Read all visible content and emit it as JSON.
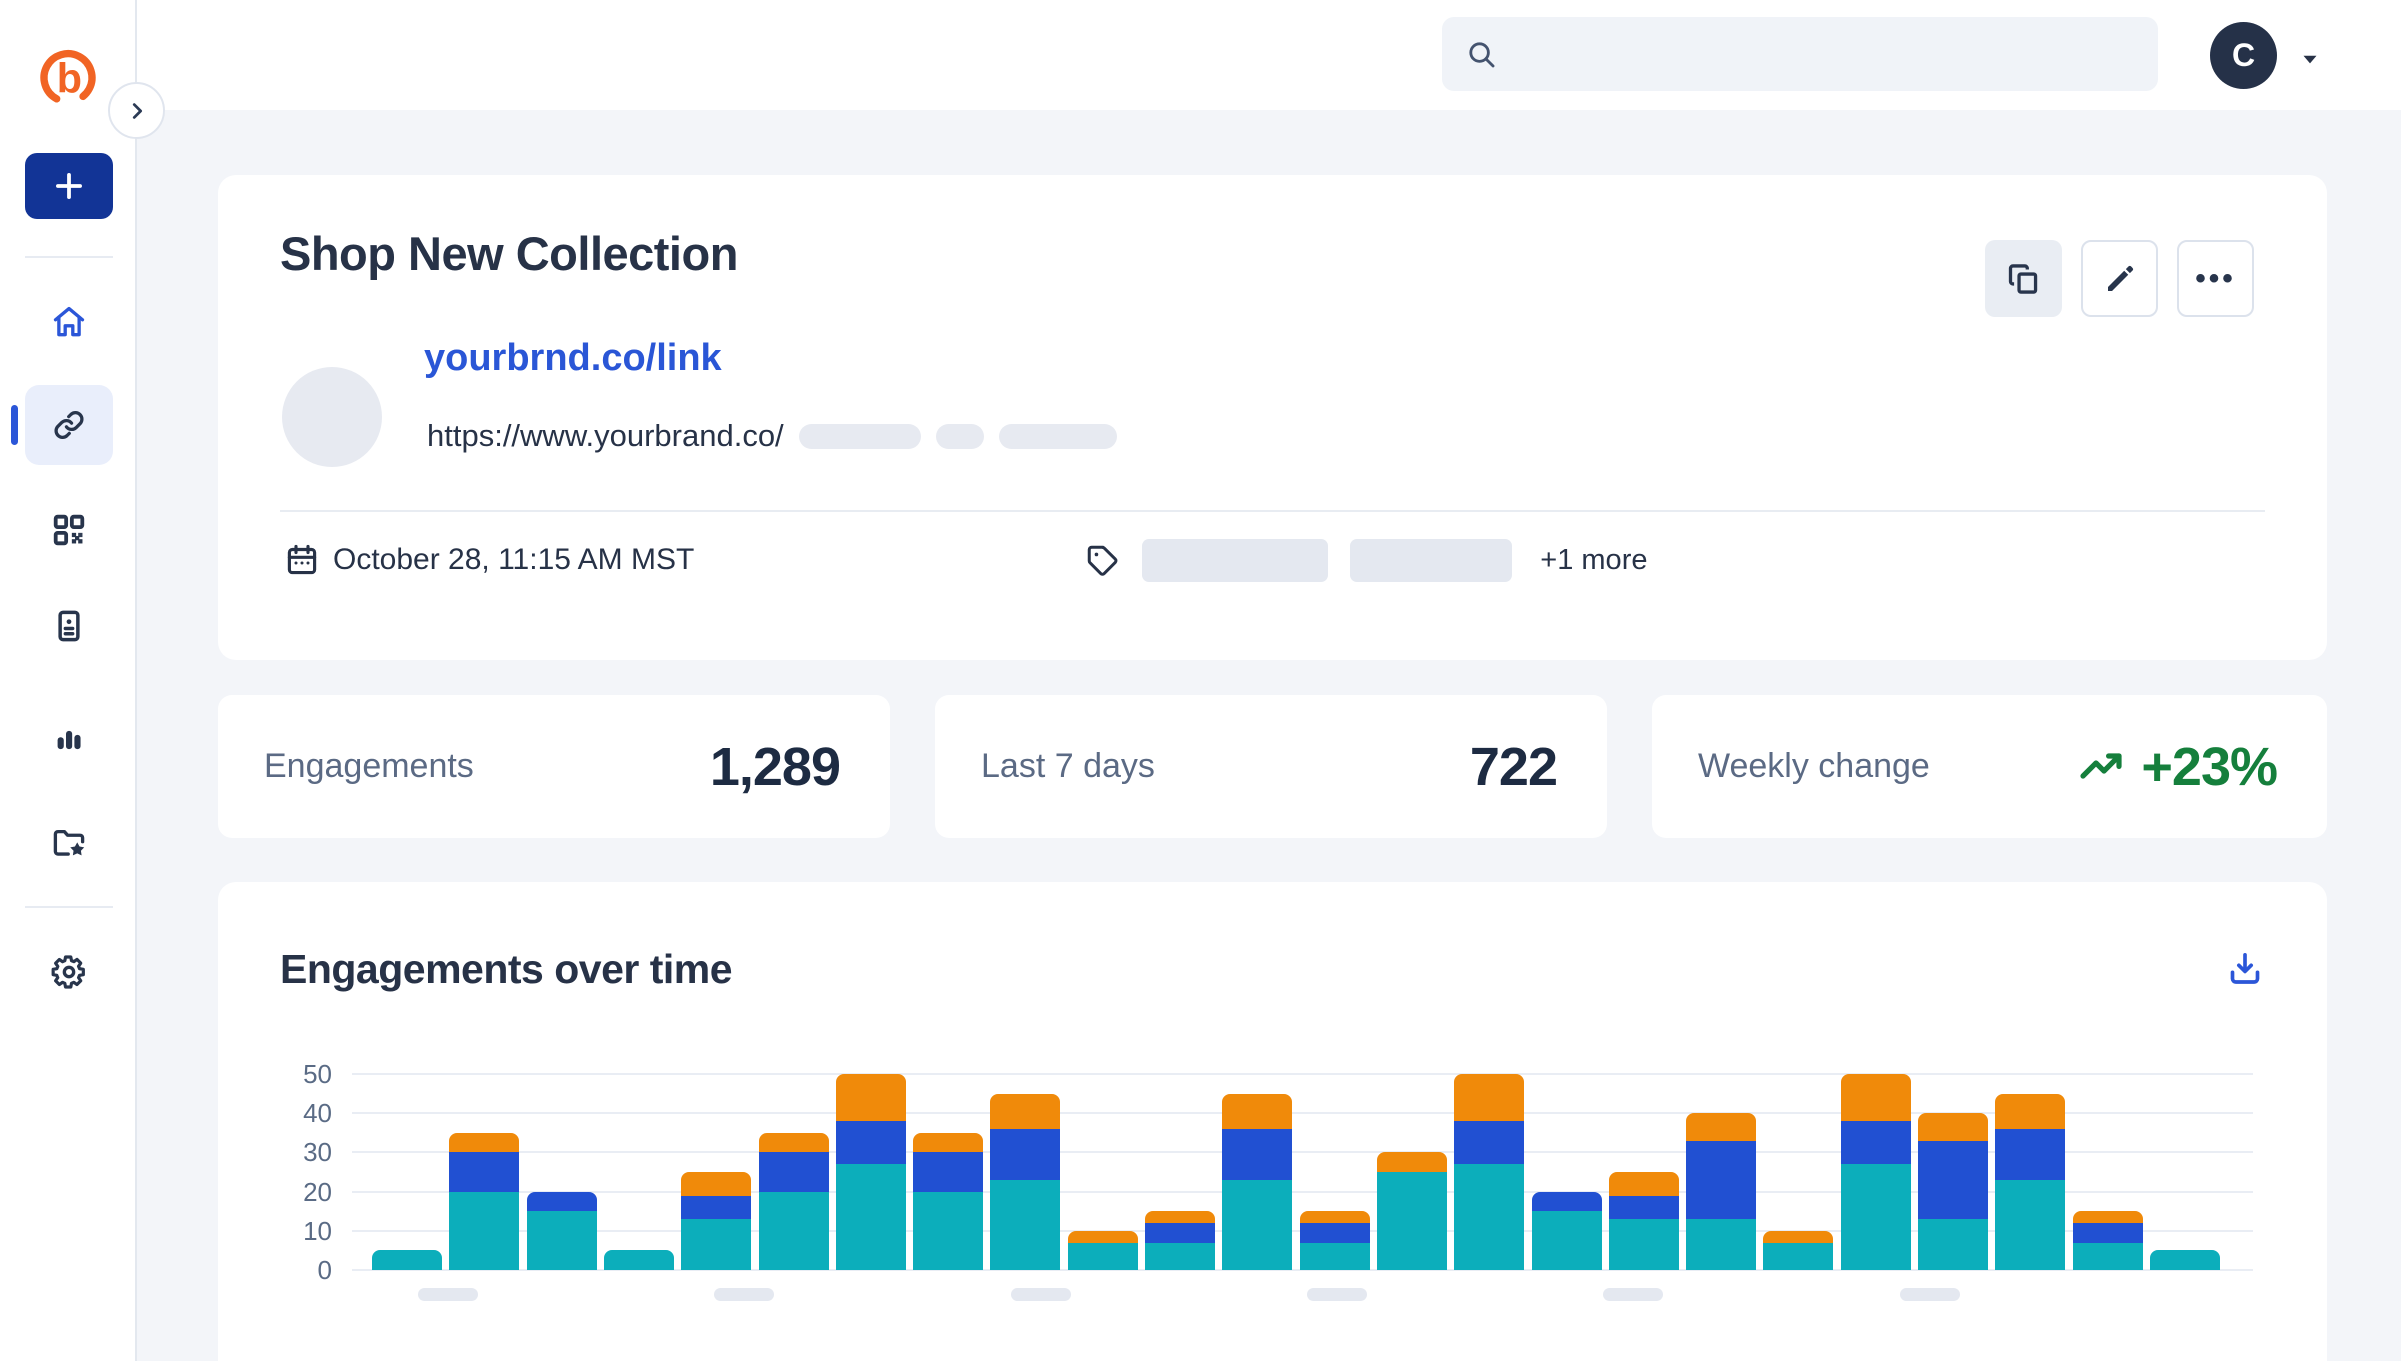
{
  "app": {
    "brand": "bitly"
  },
  "header": {
    "search": {
      "value": "",
      "placeholder": ""
    },
    "account": {
      "avatar_initial": "C"
    }
  },
  "sidebar": {
    "items": [
      {
        "id": "home",
        "icon": "home-icon",
        "active": false
      },
      {
        "id": "links",
        "icon": "link-icon",
        "active": true
      },
      {
        "id": "qr-codes",
        "icon": "qr-code-icon",
        "active": false
      },
      {
        "id": "pages",
        "icon": "pages-icon",
        "active": false
      },
      {
        "id": "analytics",
        "icon": "bar-chart-icon",
        "active": false
      },
      {
        "id": "campaigns",
        "icon": "folder-star-icon",
        "active": false
      }
    ],
    "settings_icon": "gear-icon",
    "create_icon": "plus-icon"
  },
  "link_detail": {
    "title": "Shop New Collection",
    "short_link": "yourbrnd.co/link",
    "destination_url": "https://www.yourbrand.co/",
    "created_at": "October 28, 11:15 AM MST",
    "tags_more_label": "+1 more",
    "action_icons": [
      "copy-icon",
      "pencil-icon",
      "ellipsis-icon"
    ]
  },
  "stats": [
    {
      "label": "Engagements",
      "value": "1,289"
    },
    {
      "label": "Last 7 days",
      "value": "722"
    },
    {
      "label": "Weekly change",
      "value": "+23%",
      "trend": "up",
      "color": "#157f3c"
    }
  ],
  "chart_data": {
    "type": "bar",
    "stacked": true,
    "title": "Engagements over time",
    "xlabel": "",
    "ylabel": "",
    "ylim": [
      0,
      50
    ],
    "yticks": [
      0,
      10,
      20,
      30,
      40,
      50
    ],
    "grid": true,
    "legend": false,
    "x_tick_labels": [
      "",
      "",
      "",
      "",
      "",
      ""
    ],
    "series": [
      {
        "name": "teal",
        "color": "#0caebb",
        "values": [
          5,
          20,
          15,
          5,
          13,
          20,
          27,
          20,
          23,
          7,
          7,
          23,
          7,
          25,
          27,
          15,
          13,
          13,
          7,
          27,
          13,
          23,
          7,
          5
        ]
      },
      {
        "name": "blue",
        "color": "#2150d2",
        "values": [
          0,
          10,
          5,
          0,
          6,
          10,
          11,
          10,
          13,
          0,
          5,
          13,
          5,
          0,
          11,
          5,
          6,
          20,
          0,
          11,
          20,
          13,
          5,
          0
        ]
      },
      {
        "name": "orange",
        "color": "#f08a0a",
        "values": [
          0,
          5,
          0,
          0,
          6,
          5,
          12,
          5,
          9,
          3,
          3,
          9,
          3,
          5,
          12,
          0,
          6,
          7,
          3,
          12,
          7,
          9,
          3,
          0
        ]
      }
    ],
    "totals": [
      5,
      35,
      20,
      5,
      25,
      35,
      50,
      35,
      45,
      10,
      15,
      45,
      15,
      30,
      50,
      20,
      25,
      40,
      10,
      50,
      40,
      45,
      15,
      5
    ]
  },
  "colors": {
    "brand_orange": "#f16424",
    "accent_blue": "#2a56d6",
    "navy_text": "#273247",
    "create_button": "#123496",
    "active_item_bg": "#e9eefb",
    "positive_green": "#157f3c",
    "page_bg": "#f3f5f9",
    "placeholder_pill": "#e7eaf1",
    "chart_teal": "#0caebb",
    "chart_blue": "#2150d2",
    "chart_orange": "#f08a0a"
  }
}
